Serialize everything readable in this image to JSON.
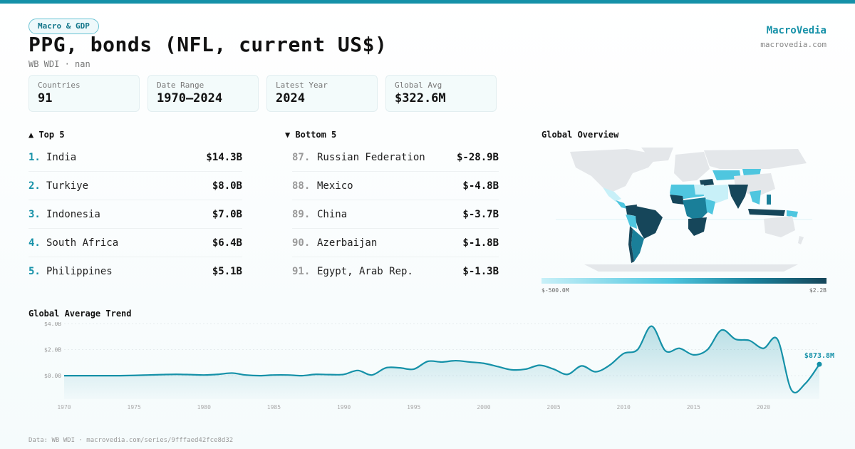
{
  "badge": "Macro & GDP",
  "title": "PPG, bonds (NFL, current US$)",
  "subtitle": "WB WDI · nan",
  "brand": {
    "name": "MacroVedia",
    "url": "macrovedia.com"
  },
  "stats": [
    {
      "label": "Countries",
      "value": "91"
    },
    {
      "label": "Date Range",
      "value": "1970–2024"
    },
    {
      "label": "Latest Year",
      "value": "2024"
    },
    {
      "label": "Global Avg",
      "value": "$322.6M"
    }
  ],
  "top5": {
    "title": "▲ Top 5",
    "items": [
      {
        "rank": "1.",
        "name": "India",
        "value": "$14.3B"
      },
      {
        "rank": "2.",
        "name": "Turkiye",
        "value": "$8.0B"
      },
      {
        "rank": "3.",
        "name": "Indonesia",
        "value": "$7.0B"
      },
      {
        "rank": "4.",
        "name": "South Africa",
        "value": "$6.4B"
      },
      {
        "rank": "5.",
        "name": "Philippines",
        "value": "$5.1B"
      }
    ]
  },
  "bottom5": {
    "title": "▼ Bottom 5",
    "items": [
      {
        "rank": "87.",
        "name": "Russian Federation",
        "value": "$-28.9B"
      },
      {
        "rank": "88.",
        "name": "Mexico",
        "value": "$-4.8B"
      },
      {
        "rank": "89.",
        "name": "China",
        "value": "$-3.7B"
      },
      {
        "rank": "90.",
        "name": "Azerbaijan",
        "value": "$-1.8B"
      },
      {
        "rank": "91.",
        "name": "Egypt, Arab Rep.",
        "value": "$-1.3B"
      }
    ]
  },
  "map": {
    "title": "Global Overview",
    "legend_min": "$-500.0M",
    "legend_max": "$2.2B",
    "colors": {
      "base": "#e4e7ea",
      "light": "#c8f0f8",
      "mid": "#4fc6df",
      "deep": "#1a7f99",
      "dark": "#16465a"
    }
  },
  "trend": {
    "title": "Global Average Trend",
    "last_label": "$873.8M"
  },
  "footer": "Data: WB WDI · macrovedia.com/series/9fffaed42fce8d32",
  "chart_data": {
    "type": "area",
    "title": "Global Average Trend",
    "ylabel": "",
    "xlabel": "",
    "ylim": [
      -1.8,
      4.0
    ],
    "yticks": [
      {
        "v": 4.0,
        "label": "$4.0B"
      },
      {
        "v": 2.0,
        "label": "$2.0B"
      },
      {
        "v": 0,
        "label": "$0.00"
      }
    ],
    "xticks": [
      1970,
      1975,
      1980,
      1985,
      1990,
      1995,
      2000,
      2005,
      2010,
      2015,
      2020
    ],
    "grid": true,
    "color": "#1591a8",
    "x": [
      1970,
      1971,
      1972,
      1973,
      1974,
      1975,
      1976,
      1977,
      1978,
      1979,
      1980,
      1981,
      1982,
      1983,
      1984,
      1985,
      1986,
      1987,
      1988,
      1989,
      1990,
      1991,
      1992,
      1993,
      1994,
      1995,
      1996,
      1997,
      1998,
      1999,
      2000,
      2001,
      2002,
      2003,
      2004,
      2005,
      2006,
      2007,
      2008,
      2009,
      2010,
      2011,
      2012,
      2013,
      2014,
      2015,
      2016,
      2017,
      2018,
      2019,
      2020,
      2021,
      2022,
      2023,
      2024
    ],
    "y": [
      0.0,
      0.0,
      0.0,
      0.0,
      0.0,
      0.02,
      0.05,
      0.08,
      0.1,
      0.08,
      0.05,
      0.1,
      0.2,
      0.05,
      0.0,
      0.05,
      0.05,
      0.0,
      0.1,
      0.08,
      0.1,
      0.4,
      0.05,
      0.6,
      0.6,
      0.5,
      1.1,
      1.05,
      1.15,
      1.05,
      0.95,
      0.7,
      0.45,
      0.5,
      0.8,
      0.5,
      0.1,
      0.75,
      0.3,
      0.8,
      1.7,
      2.0,
      3.8,
      1.9,
      2.1,
      1.6,
      2.0,
      3.5,
      2.8,
      2.7,
      2.1,
      2.8,
      -1.1,
      -0.6,
      0.874
    ]
  }
}
